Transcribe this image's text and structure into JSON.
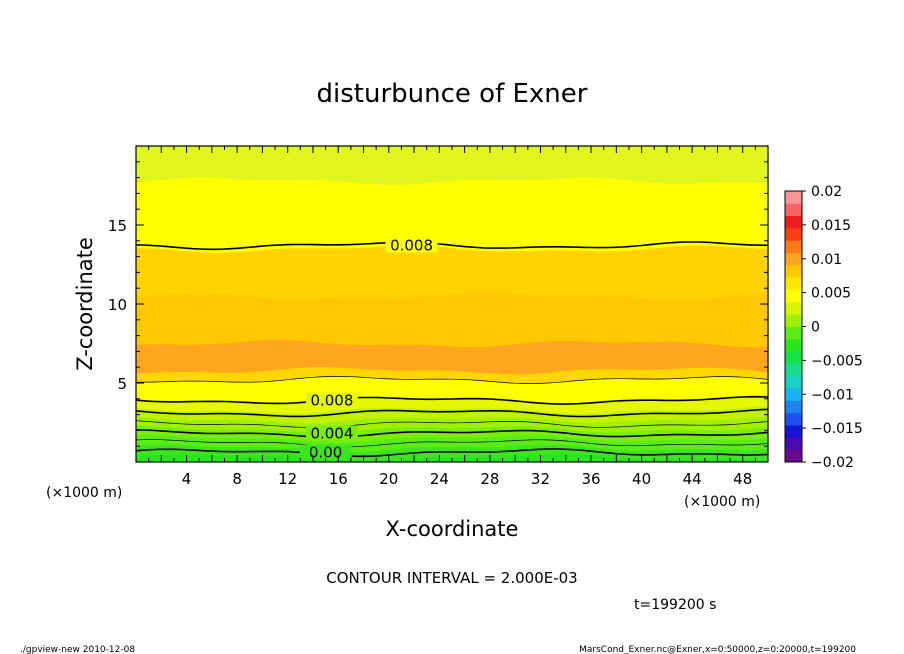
{
  "chart_data": {
    "type": "heatmap",
    "title": "disturbunce of Exner",
    "xlabel": "X-coordinate",
    "ylabel": "Z-coordinate",
    "x_unit": "(×1000 m)",
    "y_unit": "(×1000 m)",
    "xlim": [
      0,
      50
    ],
    "ylim": [
      0,
      20
    ],
    "x_ticks": [
      4,
      8,
      12,
      16,
      20,
      24,
      28,
      32,
      36,
      40,
      44,
      48
    ],
    "y_ticks": [
      5,
      10,
      15
    ],
    "contour_interval_text": "CONTOUR INTERVAL = 2.000E-03",
    "time_text": "t=199200 s",
    "contour_labels": [
      "0.008",
      "0.008",
      "0.004",
      "0.00"
    ],
    "colorbar": {
      "min": -0.02,
      "max": 0.02,
      "ticks": [
        "0.02",
        "0.015",
        "0.01",
        "0.005",
        "0",
        "−0.005",
        "−0.01",
        "−0.015",
        "−0.02"
      ],
      "colors": [
        "#6a0a8e",
        "#4a0ab4",
        "#1414d2",
        "#1e50ee",
        "#1e82f0",
        "#18b4f0",
        "#18d2c8",
        "#18dc8c",
        "#14e246",
        "#28e61e",
        "#5aec14",
        "#a0f000",
        "#d8f500",
        "#ffff00",
        "#ffe600",
        "#ffc800",
        "#ffa51e",
        "#ff7a14",
        "#ff3c14",
        "#f01e1e",
        "#f56464",
        "#fa9696"
      ]
    },
    "bands": [
      {
        "z0": 0.0,
        "z1": 0.3,
        "color": "#28e61e"
      },
      {
        "z0": 0.3,
        "z1": 0.9,
        "color": "#3ce61e"
      },
      {
        "z0": 0.9,
        "z1": 1.5,
        "color": "#5aec14"
      },
      {
        "z0": 1.5,
        "z1": 2.1,
        "color": "#78ee0a"
      },
      {
        "z0": 2.1,
        "z1": 2.7,
        "color": "#a0f000"
      },
      {
        "z0": 2.7,
        "z1": 3.3,
        "color": "#c3f200"
      },
      {
        "z0": 3.3,
        "z1": 4.0,
        "color": "#e6f800"
      },
      {
        "z0": 4.0,
        "z1": 5.2,
        "color": "#ffff00"
      },
      {
        "z0": 5.2,
        "z1": 5.8,
        "color": "#ffd700"
      },
      {
        "z0": 5.8,
        "z1": 7.5,
        "color": "#ffa51e"
      },
      {
        "z0": 7.5,
        "z1": 10.5,
        "color": "#ffc800"
      },
      {
        "z0": 10.5,
        "z1": 13.5,
        "color": "#ffd200"
      },
      {
        "z0": 13.5,
        "z1": 17.8,
        "color": "#ffff00"
      },
      {
        "z0": 17.8,
        "z1": 20.0,
        "color": "#e1f51e"
      }
    ],
    "contours": [
      {
        "z": 0.6,
        "thick": true
      },
      {
        "z": 1.2,
        "thick": false
      },
      {
        "z": 1.8,
        "thick": true
      },
      {
        "z": 2.4,
        "thick": false
      },
      {
        "z": 3.1,
        "thick": true
      },
      {
        "z": 3.9,
        "thick": true
      },
      {
        "z": 5.2,
        "thick": false
      },
      {
        "z": 13.7,
        "thick": true
      }
    ]
  },
  "footer": {
    "left": "./gpview-new   2010-12-08",
    "right": "MarsCond_Exner.nc@Exner,x=0:50000,z=0:20000,t=199200"
  }
}
